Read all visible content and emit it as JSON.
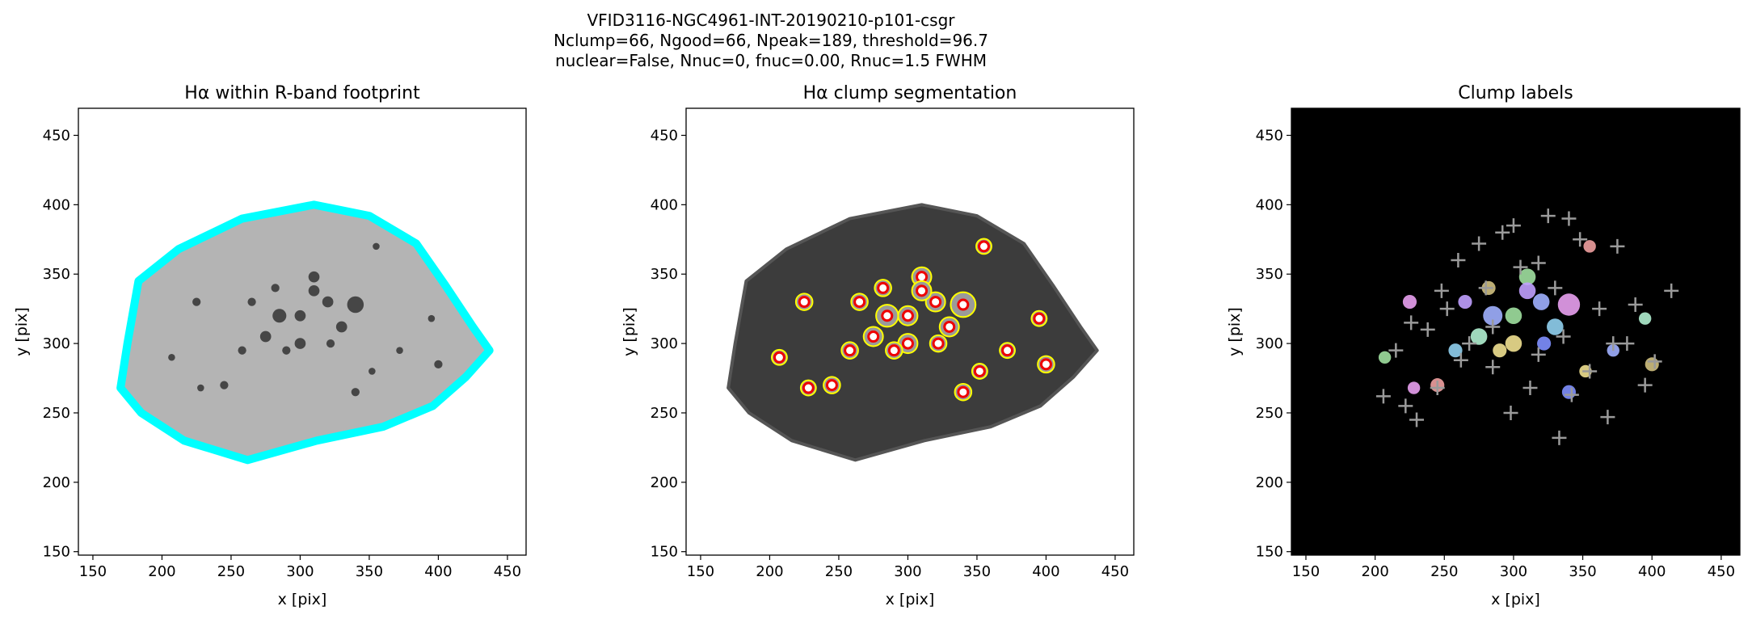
{
  "figure": {
    "suptitle": [
      "VFID3116-NGC4961-INT-20190210-p101-csgr",
      "Nclump=66, Ngood=66, Npeak=189, threshold=96.7",
      "nuclear=False, Nnuc=0, fnuc=0.00, Rnuc=1.5 FWHM"
    ]
  },
  "chart_data": [
    {
      "type": "image",
      "title": "Hα within R-band footprint",
      "xlabel": "x [pix]",
      "ylabel": "y [pix]",
      "xlim": [
        139.5,
        463.5
      ],
      "ylim": [
        147.5,
        469.5
      ],
      "xticks": [
        150,
        200,
        250,
        300,
        350,
        400,
        450
      ],
      "yticks": [
        150,
        200,
        250,
        300,
        350,
        400,
        450
      ]
    },
    {
      "type": "image",
      "title": "Hα clump segmentation",
      "xlabel": "x [pix]",
      "ylabel": "y [pix]",
      "xlim": [
        139.5,
        463.5
      ],
      "ylim": [
        147.5,
        469.5
      ],
      "xticks": [
        150,
        200,
        250,
        300,
        350,
        400,
        450
      ],
      "yticks": [
        150,
        200,
        250,
        300,
        350,
        400,
        450
      ]
    },
    {
      "type": "scatter",
      "title": "Clump labels",
      "xlabel": "x [pix]",
      "ylabel": "y [pix]",
      "xlim": [
        139.5,
        463.5
      ],
      "ylim": [
        147.5,
        469.5
      ],
      "xticks": [
        150,
        200,
        250,
        300,
        350,
        400,
        450
      ],
      "yticks": [
        150,
        200,
        250,
        300,
        350,
        400,
        450
      ],
      "x": [
        206,
        215,
        222,
        230,
        238,
        245,
        252,
        260,
        268,
        275,
        280,
        285,
        292,
        298,
        305,
        312,
        318,
        325,
        330,
        336,
        342,
        348,
        355,
        362,
        368,
        375,
        382,
        388,
        395,
        402,
        414,
        300,
        318,
        333,
        285,
        262,
        248,
        226,
        340,
        372
      ],
      "y": [
        262,
        295,
        255,
        245,
        310,
        268,
        325,
        360,
        300,
        372,
        340,
        283,
        380,
        250,
        355,
        268,
        292,
        392,
        340,
        305,
        263,
        375,
        280,
        325,
        247,
        370,
        300,
        328,
        270,
        287,
        338,
        385,
        358,
        232,
        312,
        288,
        338,
        315,
        390,
        300
      ],
      "marker_color": "#9a9a9a"
    }
  ]
}
